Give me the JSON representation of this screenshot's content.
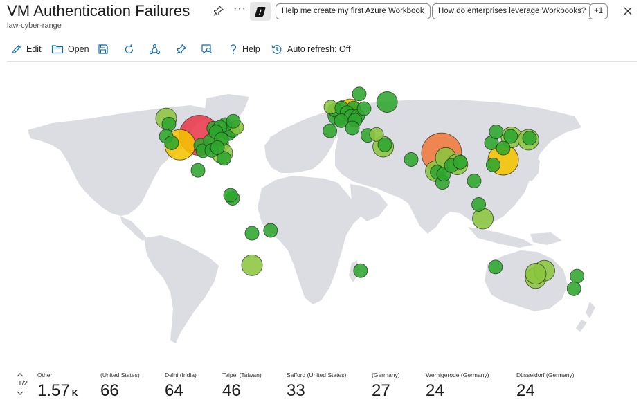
{
  "header": {
    "title": "VM Authentication Failures",
    "subtitle": "law-cyber-range",
    "more_label": "···",
    "chips": [
      "Help me create my first Azure Workbook",
      "How do enterprises leverage Workbooks?",
      "+1"
    ]
  },
  "toolbar": {
    "edit": "Edit",
    "open": "Open",
    "help": "Help",
    "auto_refresh": "Auto refresh: Off"
  },
  "pager": {
    "label": "1/2"
  },
  "tiles": [
    {
      "label": "Other",
      "value": "1.57",
      "unit": "K"
    },
    {
      "label": "(United States)",
      "value": "66"
    },
    {
      "label": "Delhi (India)",
      "value": "64"
    },
    {
      "label": "Taipei (Taiwan)",
      "value": "46"
    },
    {
      "label": "Safford (United States)",
      "value": "33"
    },
    {
      "label": "(Germany)",
      "value": "27"
    },
    {
      "label": "Wernigerode (Germany)",
      "value": "24"
    },
    {
      "label": "Düsseldorf (Germany)",
      "value": "24"
    }
  ],
  "colors": {
    "land": "#dcdde2",
    "accent": "#0f6cbd",
    "bubble_green": "#2ea62e",
    "bubble_lime": "#8cc63f",
    "bubble_yellow": "#f5c400",
    "bubble_orange": "#f07a3c",
    "bubble_red": "#e8394a"
  },
  "map_bubbles": [
    {
      "lon": -98,
      "lat": 38,
      "size": 5,
      "color": "red"
    },
    {
      "lon": -112,
      "lat": 33,
      "size": 4,
      "color": "yellow"
    },
    {
      "lon": 77,
      "lat": 28.6,
      "size": 5,
      "color": "orange"
    },
    {
      "lon": 121.5,
      "lat": 25,
      "size": 4,
      "color": "yellow"
    },
    {
      "lon": -122,
      "lat": 47,
      "size": 3,
      "color": "lime"
    },
    {
      "lon": -120,
      "lat": 44,
      "size": 2,
      "color": "green"
    },
    {
      "lon": -122,
      "lat": 37.5,
      "size": 2,
      "color": "green"
    },
    {
      "lon": -118,
      "lat": 34,
      "size": 2,
      "color": "green"
    },
    {
      "lon": -97,
      "lat": 32.7,
      "size": 2,
      "color": "green"
    },
    {
      "lon": -95.4,
      "lat": 29.8,
      "size": 2,
      "color": "green"
    },
    {
      "lon": -90,
      "lat": 35,
      "size": 2,
      "color": "green"
    },
    {
      "lon": -87.6,
      "lat": 41.8,
      "size": 2,
      "color": "green"
    },
    {
      "lon": -84.4,
      "lat": 33.7,
      "size": 3,
      "color": "lime"
    },
    {
      "lon": -81.5,
      "lat": 28.5,
      "size": 3,
      "color": "lime"
    },
    {
      "lon": -80.2,
      "lat": 25.8,
      "size": 2,
      "color": "green"
    },
    {
      "lon": -77,
      "lat": 38.9,
      "size": 2,
      "color": "green"
    },
    {
      "lon": -74,
      "lat": 40.7,
      "size": 2,
      "color": "green"
    },
    {
      "lon": -71,
      "lat": 42.3,
      "size": 2,
      "color": "lime"
    },
    {
      "lon": -79.4,
      "lat": 43.7,
      "size": 2,
      "color": "green"
    },
    {
      "lon": -83,
      "lat": 42.3,
      "size": 2,
      "color": "green"
    },
    {
      "lon": -86,
      "lat": 39.8,
      "size": 2,
      "color": "green"
    },
    {
      "lon": -82,
      "lat": 36,
      "size": 2,
      "color": "green"
    },
    {
      "lon": -73.5,
      "lat": 45.5,
      "size": 2,
      "color": "green"
    },
    {
      "lon": -89,
      "lat": 30,
      "size": 2,
      "color": "green"
    },
    {
      "lon": -85,
      "lat": 31.5,
      "size": 2,
      "color": "green"
    },
    {
      "lon": -99,
      "lat": 19.4,
      "size": 2,
      "color": "green"
    },
    {
      "lon": -74,
      "lat": 4.6,
      "size": 2,
      "color": "green"
    },
    {
      "lon": -75.5,
      "lat": 6.2,
      "size": 2,
      "color": "green"
    },
    {
      "lon": -60,
      "lat": -14,
      "size": 2,
      "color": "green"
    },
    {
      "lon": -46.6,
      "lat": -12.5,
      "size": 2,
      "color": "green"
    },
    {
      "lon": -60,
      "lat": -31,
      "size": 3,
      "color": "lime"
    },
    {
      "lon": -0.1,
      "lat": 51.5,
      "size": 2,
      "color": "green"
    },
    {
      "lon": -3,
      "lat": 53,
      "size": 2,
      "color": "lime"
    },
    {
      "lon": 2.3,
      "lat": 48.8,
      "size": 3,
      "color": "green"
    },
    {
      "lon": 4.9,
      "lat": 52.4,
      "size": 2,
      "color": "green"
    },
    {
      "lon": 6.8,
      "lat": 51.2,
      "size": 3,
      "color": "lime"
    },
    {
      "lon": 10.8,
      "lat": 51.8,
      "size": 3,
      "color": "yellow"
    },
    {
      "lon": 13.4,
      "lat": 52.5,
      "size": 2,
      "color": "green"
    },
    {
      "lon": 8.7,
      "lat": 50.1,
      "size": 2,
      "color": "green"
    },
    {
      "lon": 11.6,
      "lat": 48.1,
      "size": 2,
      "color": "green"
    },
    {
      "lon": 16.4,
      "lat": 48.2,
      "size": 2,
      "color": "green"
    },
    {
      "lon": 21,
      "lat": 52.2,
      "size": 2,
      "color": "green"
    },
    {
      "lon": 14.5,
      "lat": 46,
      "size": 2,
      "color": "green"
    },
    {
      "lon": 17.5,
      "lat": 60,
      "size": 2,
      "color": "green"
    },
    {
      "lon": 4.5,
      "lat": 45.8,
      "size": 2,
      "color": "green"
    },
    {
      "lon": -3.7,
      "lat": 40.4,
      "size": 2,
      "color": "green"
    },
    {
      "lon": 12.5,
      "lat": 41.9,
      "size": 2,
      "color": "green"
    },
    {
      "lon": 23.7,
      "lat": 38,
      "size": 2,
      "color": "green"
    },
    {
      "lon": 30,
      "lat": 38.5,
      "size": 2,
      "color": "lime"
    },
    {
      "lon": 34.8,
      "lat": 32,
      "size": 3,
      "color": "lime"
    },
    {
      "lon": 36,
      "lat": 33,
      "size": 2,
      "color": "green"
    },
    {
      "lon": 37.6,
      "lat": 55.7,
      "size": 3,
      "color": "green"
    },
    {
      "lon": 55,
      "lat": 25.2,
      "size": 2,
      "color": "green"
    },
    {
      "lon": 72.8,
      "lat": 19,
      "size": 3,
      "color": "lime"
    },
    {
      "lon": 73.8,
      "lat": 18.5,
      "size": 2,
      "color": "green"
    },
    {
      "lon": 77.6,
      "lat": 13,
      "size": 2,
      "color": "green"
    },
    {
      "lon": 78.5,
      "lat": 17.4,
      "size": 2,
      "color": "green"
    },
    {
      "lon": 80,
      "lat": 26,
      "size": 3,
      "color": "lime"
    },
    {
      "lon": 84,
      "lat": 22,
      "size": 2,
      "color": "green"
    },
    {
      "lon": 88.4,
      "lat": 22.6,
      "size": 3,
      "color": "lime"
    },
    {
      "lon": 90.4,
      "lat": 23.8,
      "size": 2,
      "color": "green"
    },
    {
      "lon": 100.5,
      "lat": 13.8,
      "size": 2,
      "color": "green"
    },
    {
      "lon": 103.8,
      "lat": 1.3,
      "size": 2,
      "color": "green"
    },
    {
      "lon": 106.8,
      "lat": -6.2,
      "size": 3,
      "color": "lime"
    },
    {
      "lon": 114.2,
      "lat": 22.3,
      "size": 2,
      "color": "green"
    },
    {
      "lon": 113,
      "lat": 34,
      "size": 2,
      "color": "green"
    },
    {
      "lon": 116.4,
      "lat": 39.9,
      "size": 2,
      "color": "green"
    },
    {
      "lon": 121.5,
      "lat": 31.2,
      "size": 2,
      "color": "green"
    },
    {
      "lon": 126.9,
      "lat": 37.5,
      "size": 2,
      "color": "green"
    },
    {
      "lon": 127.5,
      "lat": 37,
      "size": 3,
      "color": "lime"
    },
    {
      "lon": 139.7,
      "lat": 35.7,
      "size": 3,
      "color": "lime"
    },
    {
      "lon": 140.5,
      "lat": 36.5,
      "size": 2,
      "color": "green"
    },
    {
      "lon": 115.9,
      "lat": -31.9,
      "size": 2,
      "color": "green"
    },
    {
      "lon": 144.9,
      "lat": -37.8,
      "size": 3,
      "color": "lime"
    },
    {
      "lon": 151.2,
      "lat": -33.9,
      "size": 3,
      "color": "lime"
    },
    {
      "lon": 145,
      "lat": -35.5,
      "size": 3,
      "color": "lime"
    },
    {
      "lon": 174.8,
      "lat": -36.8,
      "size": 2,
      "color": "green"
    },
    {
      "lon": 172.6,
      "lat": -43.5,
      "size": 2,
      "color": "green"
    },
    {
      "lon": 18.4,
      "lat": -33.9,
      "size": 2,
      "color": "green"
    }
  ]
}
